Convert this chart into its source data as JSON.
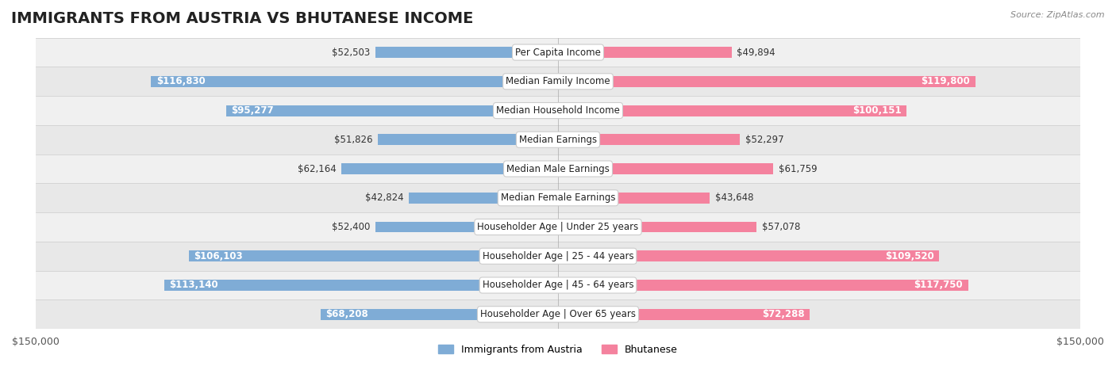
{
  "title": "IMMIGRANTS FROM AUSTRIA VS BHUTANESE INCOME",
  "source": "Source: ZipAtlas.com",
  "categories": [
    "Per Capita Income",
    "Median Family Income",
    "Median Household Income",
    "Median Earnings",
    "Median Male Earnings",
    "Median Female Earnings",
    "Householder Age | Under 25 years",
    "Householder Age | 25 - 44 years",
    "Householder Age | 45 - 64 years",
    "Householder Age | Over 65 years"
  ],
  "austria_values": [
    52503,
    116830,
    95277,
    51826,
    62164,
    42824,
    52400,
    106103,
    113140,
    68208
  ],
  "bhutanese_values": [
    49894,
    119800,
    100151,
    52297,
    61759,
    43648,
    57078,
    109520,
    117750,
    72288
  ],
  "austria_color": "#7facd6",
  "bhutanese_color": "#f4829e",
  "austria_label": "Immigrants from Austria",
  "bhutanese_label": "Bhutanese",
  "axis_limit": 150000,
  "background_color": "#ffffff",
  "row_bg_light": "#f5f5f5",
  "row_bg_dark": "#ebebeb",
  "label_box_color": "#ffffff",
  "label_box_border": "#cccccc",
  "title_fontsize": 14,
  "axis_label_fontsize": 9,
  "bar_label_fontsize": 8.5,
  "category_fontsize": 8.5
}
